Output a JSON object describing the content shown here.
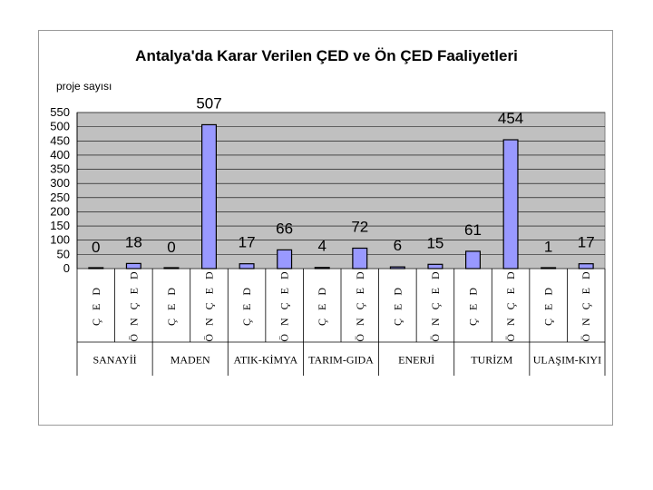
{
  "chart_data": {
    "type": "bar",
    "title": "Antalya'da Karar Verilen ÇED ve Ön ÇED Faaliyetleri",
    "ylabel": "proje sayısı",
    "ylim": [
      0,
      550
    ],
    "yticks": [
      0,
      50,
      100,
      150,
      200,
      250,
      300,
      350,
      400,
      450,
      500,
      550
    ],
    "grid": true,
    "colors": {
      "bar": "#9999ff",
      "plot_bg": "#c0c0c0"
    },
    "groups": [
      {
        "name": "SANAYİİ",
        "bars": [
          {
            "label": "Ç E D",
            "value": 0
          },
          {
            "label": "Ö N Ç E D",
            "value": 18
          }
        ]
      },
      {
        "name": "MADEN",
        "bars": [
          {
            "label": "Ç E D",
            "value": 0
          },
          {
            "label": "Ö N Ç E D",
            "value": 507
          }
        ]
      },
      {
        "name": "ATIK-KİMYA",
        "bars": [
          {
            "label": "Ç E D",
            "value": 17
          },
          {
            "label": "Ö N Ç E D",
            "value": 66
          }
        ]
      },
      {
        "name": "TARIM-GIDA",
        "bars": [
          {
            "label": "Ç E D",
            "value": 4
          },
          {
            "label": "Ö N Ç E D",
            "value": 72
          }
        ]
      },
      {
        "name": "ENERJİ",
        "bars": [
          {
            "label": "Ç E D",
            "value": 6
          },
          {
            "label": "Ö N Ç E D",
            "value": 15
          }
        ]
      },
      {
        "name": "TURİZM",
        "bars": [
          {
            "label": "Ç E D",
            "value": 61
          },
          {
            "label": "Ö N Ç E D",
            "value": 454
          }
        ]
      },
      {
        "name": "ULAŞIM-KIYI",
        "bars": [
          {
            "label": "Ç E D",
            "value": 1
          },
          {
            "label": "Ö N Ç E D",
            "value": 17
          }
        ]
      }
    ]
  }
}
